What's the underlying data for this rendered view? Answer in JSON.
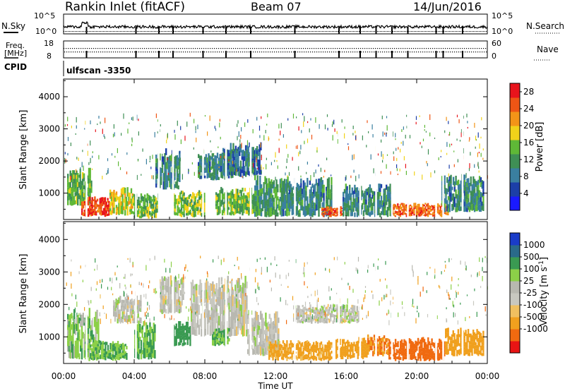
{
  "header": {
    "station": "Rankin Inlet (fitACF)",
    "beam": "Beam 07",
    "date": "14/Jun/2016"
  },
  "strip_labels": {
    "nsky": "N.Sky",
    "nsearch": "N.Search",
    "freq_line1": "Freq.",
    "freq_line2": "[MHz]",
    "nave": "Nave",
    "cpid": "CPID",
    "scan_name": "ulfscan -3350"
  },
  "strip_ticks": {
    "noise_left": [
      "10^5",
      "10^0"
    ],
    "noise_right": [
      "10^5",
      "10^0"
    ],
    "freq_left": [
      "18",
      "8"
    ],
    "nave_right": [
      "60",
      "0"
    ]
  },
  "x_axis": {
    "title": "Time UT",
    "ticks": [
      "00:00",
      "04:00",
      "08:00",
      "12:00",
      "16:00",
      "20:00",
      "00:00"
    ]
  },
  "colors": {
    "power_scale": [
      "#1a1aff",
      "#1c3fa8",
      "#3a7fa0",
      "#3f8f55",
      "#5fb837",
      "#f1d21a",
      "#f39418",
      "#ee5515",
      "#e8141c"
    ],
    "velocity_scale": [
      "#e81414",
      "#f06a10",
      "#f0a01e",
      "#f0c060",
      "#c8c8c0",
      "#b8b8b0",
      "#8cd048",
      "#3a9a52",
      "#2a6a8a",
      "#1a3cc8"
    ]
  },
  "chart_data": [
    {
      "type": "heatmap",
      "title": "",
      "xlabel": "Time UT",
      "ylabel": "Slant Range [km]",
      "xlim": [
        0,
        24
      ],
      "ylim": [
        180,
        4550
      ],
      "y_ticks": [
        1000,
        2000,
        3000,
        4000
      ],
      "colorbar": {
        "label": "Power [dB]",
        "ticks": [
          4,
          8,
          12,
          16,
          20,
          24,
          28
        ],
        "range": [
          0,
          30
        ]
      },
      "series": [
        {
          "values": [
            [
              0.2,
              1.6,
              600,
              1800,
              14
            ],
            [
              1.0,
              2.6,
              250,
              900,
              26
            ],
            [
              2.6,
              4.0,
              300,
              1200,
              18
            ],
            [
              4.0,
              5.4,
              200,
              1000,
              14
            ],
            [
              5.2,
              6.6,
              1100,
              2400,
              10
            ],
            [
              6.2,
              8.0,
              250,
              1100,
              16
            ],
            [
              7.6,
              9.6,
              1400,
              2300,
              10
            ],
            [
              8.6,
              10.8,
              300,
              1200,
              14
            ],
            [
              9.0,
              11.2,
              1500,
              2600,
              8
            ],
            [
              10.8,
              12.8,
              250,
              1600,
              12
            ],
            [
              12.4,
              15.2,
              250,
              1500,
              10
            ],
            [
              14.6,
              15.8,
              250,
              600,
              26
            ],
            [
              15.8,
              18.6,
              250,
              1300,
              10
            ],
            [
              18.6,
              21.8,
              250,
              700,
              24
            ],
            [
              21.4,
              23.8,
              400,
              1600,
              10
            ]
          ]
        }
      ]
    },
    {
      "type": "heatmap",
      "title": "",
      "xlabel": "Time UT",
      "ylabel": "Slant Range [km]",
      "xlim": [
        0,
        24
      ],
      "ylim": [
        180,
        4550
      ],
      "y_ticks": [
        1000,
        2000,
        3000,
        4000
      ],
      "colorbar": {
        "label": "Velocity [m s^-1]",
        "ticks": [
          "1000",
          "500",
          "100",
          "25",
          "-25",
          "-100",
          "-500",
          "-1000"
        ]
      },
      "series": [
        {
          "values": [
            [
              0.2,
              2.0,
              300,
              1900,
              40
            ],
            [
              1.2,
              3.6,
              250,
              900,
              60
            ],
            [
              2.8,
              4.4,
              1400,
              2300,
              0
            ],
            [
              4.0,
              5.2,
              300,
              1500,
              60
            ],
            [
              5.4,
              6.8,
              1700,
              3000,
              0
            ],
            [
              6.2,
              7.2,
              700,
              1500,
              250
            ],
            [
              7.2,
              10.4,
              1000,
              2900,
              0
            ],
            [
              8.4,
              9.4,
              700,
              1300,
              60
            ],
            [
              10.4,
              12.2,
              400,
              1800,
              0
            ],
            [
              11.6,
              15.2,
              250,
              900,
              -120
            ],
            [
              13.0,
              16.8,
              1400,
              2000,
              0
            ],
            [
              15.4,
              17.2,
              300,
              1000,
              -150
            ],
            [
              17.2,
              18.4,
              400,
              1100,
              -300
            ],
            [
              18.4,
              21.6,
              250,
              1000,
              -400
            ],
            [
              21.6,
              23.8,
              400,
              1300,
              -200
            ]
          ]
        }
      ]
    }
  ]
}
